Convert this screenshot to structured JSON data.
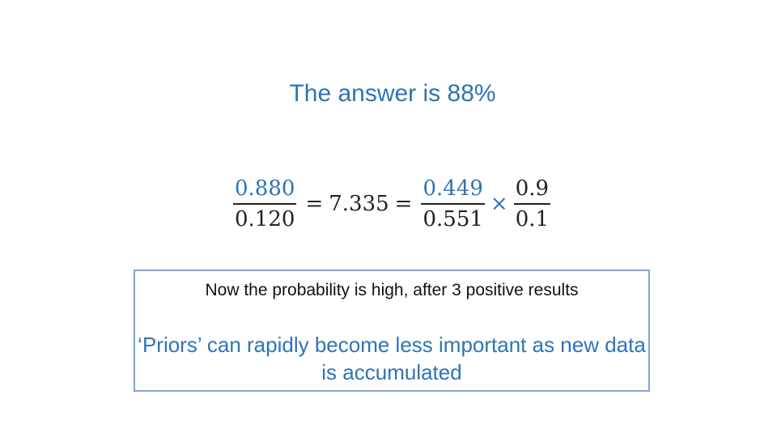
{
  "headline": "The answer is 88%",
  "equation": {
    "left_fraction": {
      "numerator": "0.880",
      "denominator": "0.120"
    },
    "equals_1": "=",
    "result": "7.335",
    "equals_2": "=",
    "middle_fraction": {
      "numerator": "0.449",
      "denominator": "0.551"
    },
    "times": "×",
    "right_fraction": {
      "numerator": "0.9",
      "denominator": "0.1"
    }
  },
  "callout": {
    "line1": "Now the probability is high, after 3 positive results",
    "line2": "‘Priors’ can rapidly become less important as new data is accumulated"
  },
  "colors": {
    "accent": "#2e74b5",
    "box_border": "#7ea6d6",
    "text": "#111111"
  }
}
